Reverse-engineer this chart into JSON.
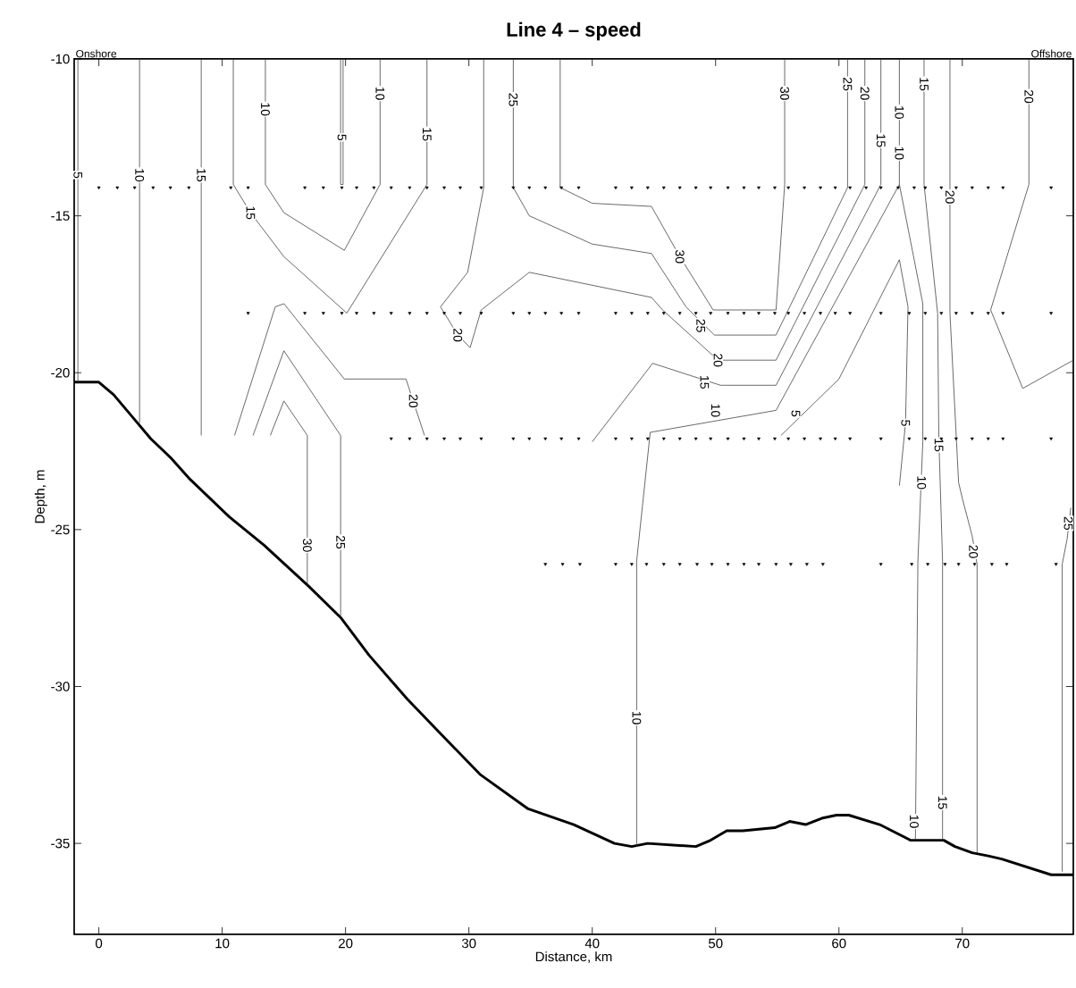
{
  "chart_data": {
    "type": "line",
    "title": "Line 4 – speed",
    "xlabel": "Distance, km",
    "ylabel": "Depth, m",
    "xlim": [
      -2,
      79
    ],
    "ylim": [
      -37.9,
      -10
    ],
    "xticks": [
      0,
      10,
      20,
      30,
      40,
      50,
      60,
      70
    ],
    "yticks": [
      -35,
      -30,
      -25,
      -20,
      -15,
      -10
    ],
    "series": [
      {
        "color": "#000000",
        "x": [
          -2.0,
          0,
          1.2,
          2.7,
          4.2,
          5.8,
          7.4,
          10.6,
          13.4,
          17.0,
          19.6,
          21.9,
          25.0,
          27.7,
          30.9,
          34.8,
          38.5,
          41.8,
          43.2,
          44.5,
          48.4,
          49.6,
          50.9,
          52.2,
          54.8,
          56.0,
          57.3,
          58.6,
          59.8,
          60.8,
          63.3,
          65.8,
          66.9,
          68.5,
          69.4,
          70.8,
          72.1,
          73.2,
          77.2,
          79.0
        ],
        "values": [
          -20.3,
          -20.3,
          -20.7,
          -21.4,
          -22.1,
          -22.7,
          -23.4,
          -24.6,
          -25.5,
          -26.8,
          -27.8,
          -29.0,
          -30.4,
          -31.5,
          -32.8,
          -33.9,
          -34.4,
          -35.0,
          -35.1,
          -35.0,
          -35.1,
          -34.9,
          -34.6,
          -34.6,
          -34.5,
          -34.3,
          -34.4,
          -34.2,
          -34.1,
          -34.1,
          -34.4,
          -34.9,
          -34.9,
          -34.9,
          -35.1,
          -35.3,
          -35.4,
          -35.5,
          -36.0,
          -36.0
        ]
      },
      {
        "color": "#333333",
        "x": [
          -1.7,
          -1.7
        ],
        "values": [
          -10,
          -20.3
        ]
      },
      {
        "color": "#333333",
        "x": [
          3.3,
          3.3
        ],
        "values": [
          -10,
          -21.6
        ]
      },
      {
        "color": "#333333",
        "x": [
          8.3,
          8.3
        ],
        "values": [
          -10,
          -22.0
        ]
      },
      {
        "color": "#333333",
        "x": [
          10.9,
          10.9,
          12.3,
          15.0,
          20.1,
          26.6,
          26.6
        ],
        "values": [
          -10,
          -14.0,
          -14.9,
          -16.3,
          -18.1,
          -14.0,
          -10
        ]
      },
      {
        "color": "#333333",
        "x": [
          13.5,
          13.5,
          15.0,
          19.9,
          22.8,
          22.8
        ],
        "values": [
          -10,
          -14.0,
          -14.9,
          -16.1,
          -14.0,
          -10
        ]
      },
      {
        "color": "#333333",
        "x": [
          19.6,
          19.6,
          19.8,
          19.8
        ],
        "values": [
          -10,
          -14.0,
          -14.0,
          -10
        ]
      },
      {
        "color": "#333333",
        "x": [
          11.0,
          14.3,
          15.0,
          19.9,
          24.9,
          26.4
        ],
        "values": [
          -22.0,
          -17.9,
          -17.8,
          -20.2,
          -20.2,
          -22.0
        ]
      },
      {
        "color": "#333333",
        "x": [
          12.5,
          15.0,
          19.6,
          19.6
        ],
        "values": [
          -22.0,
          -19.3,
          -22.0,
          -27.8
        ]
      },
      {
        "color": "#333333",
        "x": [
          13.9,
          15.0,
          16.9,
          16.9
        ],
        "values": [
          -22.0,
          -20.9,
          -22.0,
          -26.8
        ]
      },
      {
        "color": "#333333",
        "x": [
          31.2,
          31.2,
          29.9,
          27.7,
          29.1,
          30.1,
          31.0,
          34.9,
          44.8,
          45.7,
          50.2,
          51.4,
          54.9,
          62.1,
          62.1
        ],
        "values": [
          -10,
          -14.1,
          -16.8,
          -17.9,
          -18.8,
          -19.2,
          -18.0,
          -16.8,
          -17.6,
          -18.0,
          -19.6,
          -19.6,
          -19.6,
          -14.0,
          -10
        ]
      },
      {
        "color": "#333333",
        "x": [
          33.6,
          33.6,
          34.9,
          40.0,
          44.8,
          47.6,
          49.9,
          54.9,
          60.7,
          60.7
        ],
        "values": [
          -10,
          -14.1,
          -15.0,
          -15.9,
          -16.2,
          -17.9,
          -18.8,
          -18.8,
          -14.1,
          -10
        ]
      },
      {
        "color": "#333333",
        "x": [
          37.4,
          37.4,
          40.0,
          44.8,
          47.1,
          49.8,
          54.9,
          55.6,
          55.6
        ],
        "values": [
          -10,
          -14.1,
          -14.6,
          -14.7,
          -16.3,
          -18.0,
          -18.0,
          -14.0,
          -10
        ]
      },
      {
        "color": "#333333",
        "x": [
          40.0,
          44.9,
          50.4,
          54.9,
          63.4,
          63.4
        ],
        "values": [
          -22.2,
          -19.7,
          -20.4,
          -20.4,
          -14.0,
          -10
        ]
      },
      {
        "color": "#333333",
        "x": [
          43.6,
          43.6,
          44.7,
          54.9,
          64.9,
          64.9
        ],
        "values": [
          -35.1,
          -26.0,
          -21.9,
          -21.2,
          -14.0,
          -10
        ]
      },
      {
        "color": "#333333",
        "x": [
          64.9,
          66.8,
          66.8,
          66.4,
          66.2
        ],
        "values": [
          -14.0,
          -17.8,
          -22.2,
          -26.0,
          -34.9
        ]
      },
      {
        "color": "#333333",
        "x": [
          55.3,
          60.0,
          64.9,
          65.6,
          65.4,
          64.9
        ],
        "values": [
          -22.0,
          -20.2,
          -16.4,
          -17.9,
          -21.6,
          -23.6
        ]
      },
      {
        "color": "#333333",
        "x": [
          66.9,
          66.9,
          68.0,
          68.1,
          68.4,
          68.4
        ],
        "values": [
          -10,
          -14.0,
          -18.1,
          -22.1,
          -26.0,
          -34.9
        ]
      },
      {
        "color": "#333333",
        "x": [
          69.0,
          69.0,
          69.7,
          70.0,
          70.8,
          71.2,
          71.2
        ],
        "values": [
          -10,
          -18.1,
          -23.5,
          -24.0,
          -25.2,
          -26.1,
          -35.3
        ]
      },
      {
        "color": "#333333",
        "x": [
          75.4,
          75.4,
          72.3,
          74.9,
          79.0
        ],
        "values": [
          -10,
          -14.0,
          -18.0,
          -20.5,
          -19.6
        ]
      },
      {
        "color": "#333333",
        "x": [
          78.8,
          78.5,
          78.1,
          78.1
        ],
        "values": [
          -24.3,
          -25.3,
          -26.1,
          -35.9
        ]
      },
      {
        "type": "scatter",
        "marker": "triangle",
        "color": "#000000",
        "x": [
          0.0,
          1.5,
          2.9,
          4.4,
          5.8,
          7.3,
          10.7,
          12.1,
          16.7,
          18.2,
          19.7,
          20.9,
          22.3,
          23.7,
          25.2,
          26.6,
          28.0,
          29.3,
          31.0,
          33.6,
          34.9,
          36.2,
          37.5,
          38.9,
          41.9,
          43.2,
          44.5,
          45.8,
          47.1,
          48.4,
          49.6,
          51.0,
          52.3,
          53.5,
          54.8,
          55.9,
          57.2,
          58.5,
          59.7,
          60.9,
          62.2,
          63.4,
          64.8,
          66.1,
          67.0,
          68.3,
          69.5,
          70.8,
          72.1,
          73.3,
          77.2
        ],
        "values": [
          -14.1,
          -14.1,
          -14.1,
          -14.1,
          -14.1,
          -14.1,
          -14.1,
          -14.1,
          -14.1,
          -14.1,
          -14.1,
          -14.1,
          -14.1,
          -14.1,
          -14.1,
          -14.1,
          -14.1,
          -14.1,
          -14.1,
          -14.1,
          -14.1,
          -14.1,
          -14.1,
          -14.1,
          -14.1,
          -14.1,
          -14.1,
          -14.1,
          -14.1,
          -14.1,
          -14.1,
          -14.1,
          -14.1,
          -14.1,
          -14.1,
          -14.1,
          -14.1,
          -14.1,
          -14.1,
          -14.1,
          -14.1,
          -14.1,
          -14.1,
          -14.1,
          -14.1,
          -14.1,
          -14.1,
          -14.1,
          -14.1,
          -14.1,
          -14.1
        ]
      },
      {
        "type": "scatter",
        "marker": "triangle",
        "color": "#000000",
        "x": [
          12.1,
          16.7,
          18.2,
          19.7,
          20.9,
          22.3,
          23.7,
          25.2,
          26.6,
          28.0,
          29.3,
          31.0,
          33.6,
          34.9,
          36.2,
          37.5,
          38.9,
          41.9,
          43.2,
          44.5,
          45.8,
          47.1,
          48.4,
          49.6,
          51.0,
          52.3,
          53.5,
          54.8,
          55.9,
          57.2,
          58.5,
          59.7,
          60.9,
          63.4,
          65.7,
          67.0,
          68.3,
          69.5,
          70.8,
          72.1,
          73.3,
          77.2
        ],
        "values": [
          -18.1,
          -18.1,
          -18.1,
          -18.1,
          -18.1,
          -18.1,
          -18.1,
          -18.1,
          -18.1,
          -18.1,
          -18.1,
          -18.1,
          -18.1,
          -18.1,
          -18.1,
          -18.1,
          -18.1,
          -18.1,
          -18.1,
          -18.1,
          -18.1,
          -18.1,
          -18.1,
          -18.1,
          -18.1,
          -18.1,
          -18.1,
          -18.1,
          -18.1,
          -18.1,
          -18.1,
          -18.1,
          -18.1,
          -18.1,
          -18.1,
          -18.1,
          -18.1,
          -18.1,
          -18.1,
          -18.1,
          -18.1,
          -18.1
        ]
      },
      {
        "type": "scatter",
        "marker": "triangle",
        "color": "#000000",
        "x": [
          23.7,
          25.2,
          26.6,
          28.0,
          29.3,
          31.0,
          33.6,
          34.9,
          36.2,
          37.5,
          38.9,
          41.9,
          43.2,
          44.5,
          45.8,
          47.1,
          48.4,
          49.6,
          51.0,
          52.3,
          53.5,
          54.8,
          55.9,
          57.2,
          58.5,
          59.7,
          60.9,
          63.4,
          65.7,
          67.0,
          68.3,
          69.5,
          70.8,
          72.1,
          73.3,
          77.2
        ],
        "values": [
          -22.1,
          -22.1,
          -22.1,
          -22.1,
          -22.1,
          -22.1,
          -22.1,
          -22.1,
          -22.1,
          -22.1,
          -22.1,
          -22.1,
          -22.1,
          -22.1,
          -22.1,
          -22.1,
          -22.1,
          -22.1,
          -22.1,
          -22.1,
          -22.1,
          -22.1,
          -22.1,
          -22.1,
          -22.1,
          -22.1,
          -22.1,
          -22.1,
          -22.1,
          -22.1,
          -22.1,
          -22.1,
          -22.1,
          -22.1,
          -22.1,
          -22.1
        ]
      },
      {
        "type": "scatter",
        "marker": "triangle",
        "color": "#000000",
        "x": [
          36.2,
          37.6,
          39.0,
          41.9,
          43.2,
          44.4,
          45.8,
          47.1,
          48.5,
          49.7,
          51.0,
          52.3,
          53.5,
          54.9,
          56.1,
          57.4,
          58.7,
          63.4,
          65.9,
          67.2,
          68.6,
          69.7,
          71.0,
          72.4,
          73.6,
          77.6
        ],
        "values": [
          -26.1,
          -26.1,
          -26.1,
          -26.1,
          -26.1,
          -26.1,
          -26.1,
          -26.1,
          -26.1,
          -26.1,
          -26.1,
          -26.1,
          -26.1,
          -26.1,
          -26.1,
          -26.1,
          -26.1,
          -26.1,
          -26.1,
          -26.1,
          -26.1,
          -26.1,
          -26.1,
          -26.1,
          -26.1,
          -26.1
        ]
      }
    ],
    "annotations": [
      "Onshore",
      "Offshore",
      {
        "text": "5",
        "x": -1.7,
        "y": -13.7
      },
      {
        "text": "10",
        "x": 3.3,
        "y": -13.7
      },
      {
        "text": "15",
        "x": 8.3,
        "y": -13.7
      },
      {
        "text": "15",
        "x": 12.3,
        "y": -14.9
      },
      {
        "text": "15",
        "x": 26.6,
        "y": -12.4
      },
      {
        "text": "10",
        "x": 13.5,
        "y": -11.6
      },
      {
        "text": "10",
        "x": 22.8,
        "y": -11.1
      },
      {
        "text": "5",
        "x": 19.7,
        "y": -12.5
      },
      {
        "text": "20",
        "x": 25.5,
        "y": -20.9
      },
      {
        "text": "25",
        "x": 19.6,
        "y": -25.4
      },
      {
        "text": "30",
        "x": 16.9,
        "y": -25.5
      },
      {
        "text": "20",
        "x": 29.1,
        "y": -18.8
      },
      {
        "text": "20",
        "x": 50.2,
        "y": -19.6
      },
      {
        "text": "20",
        "x": 62.1,
        "y": -11.1
      },
      {
        "text": "25",
        "x": 33.6,
        "y": -11.3
      },
      {
        "text": "25",
        "x": 48.8,
        "y": -18.5
      },
      {
        "text": "25",
        "x": 60.7,
        "y": -10.8
      },
      {
        "text": "30",
        "x": 47.1,
        "y": -16.3
      },
      {
        "text": "30",
        "x": 55.6,
        "y": -11.1
      },
      {
        "text": "15",
        "x": 49.1,
        "y": -20.3
      },
      {
        "text": "15",
        "x": 63.4,
        "y": -12.6
      },
      {
        "text": "10",
        "x": 43.6,
        "y": -31.0
      },
      {
        "text": "10",
        "x": 50.0,
        "y": -21.2
      },
      {
        "text": "10",
        "x": 64.9,
        "y": -11.7
      },
      {
        "text": "10",
        "x": 64.9,
        "y": -13.0
      },
      {
        "text": "10",
        "x": 66.7,
        "y": -23.5
      },
      {
        "text": "10",
        "x": 66.1,
        "y": -34.3
      },
      {
        "text": "5",
        "x": 56.5,
        "y": -21.3
      },
      {
        "text": "5",
        "x": 65.4,
        "y": -21.6
      },
      {
        "text": "15",
        "x": 66.9,
        "y": -10.8
      },
      {
        "text": "15",
        "x": 68.1,
        "y": -22.3
      },
      {
        "text": "15",
        "x": 68.4,
        "y": -33.7
      },
      {
        "text": "20",
        "x": 69.0,
        "y": -14.4
      },
      {
        "text": "20",
        "x": 70.9,
        "y": -25.7
      },
      {
        "text": "20",
        "x": 75.4,
        "y": -11.2
      },
      {
        "text": "25",
        "x": 78.6,
        "y": -24.8
      }
    ]
  }
}
